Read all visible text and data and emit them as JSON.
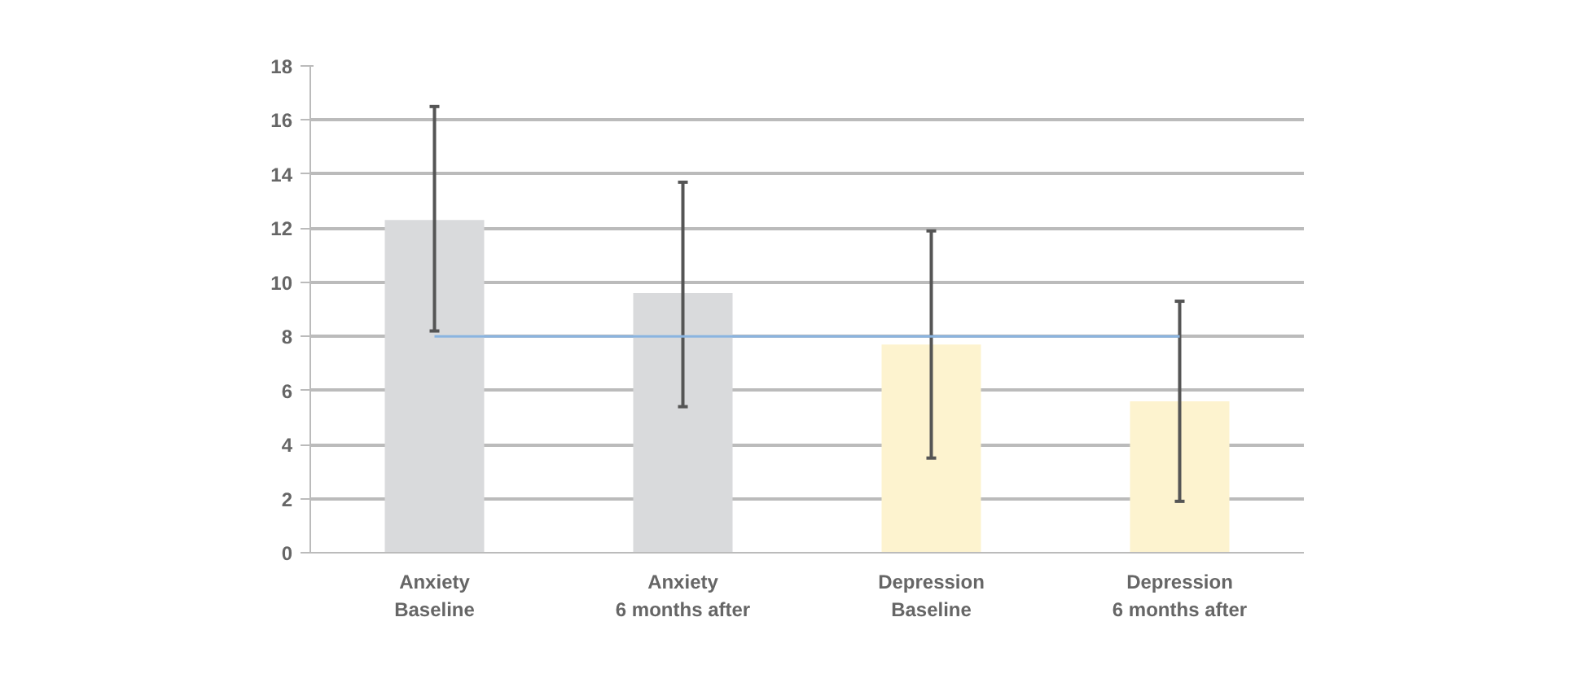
{
  "chart_data": {
    "type": "bar",
    "categories": [
      "Anxiety\nBaseline",
      "Anxiety\n6 months after",
      "Depression\nBaseline",
      "Depression\n6 months after"
    ],
    "values": [
      12.3,
      9.6,
      7.7,
      5.6
    ],
    "colors": [
      "#d9dadc",
      "#d9dadc",
      "#fdf3cf",
      "#fdf3cf"
    ],
    "errors": [
      [
        8.2,
        16.5
      ],
      [
        5.4,
        13.7
      ],
      [
        3.5,
        11.9
      ],
      [
        1.9,
        9.3
      ]
    ],
    "ylim": [
      0,
      18
    ],
    "yticks": [
      0,
      2,
      4,
      6,
      8,
      10,
      12,
      14,
      16,
      18
    ],
    "ref_lines": [
      {
        "axis": "y",
        "value": 8,
        "color": "#8ab4e0"
      }
    ],
    "grid": "y"
  }
}
